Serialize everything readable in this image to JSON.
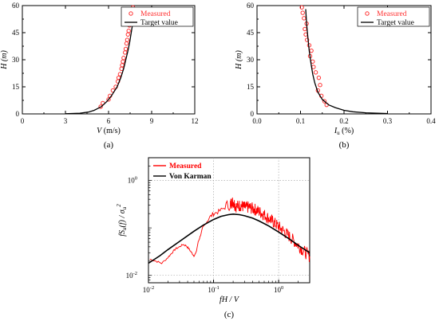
{
  "chart_data": [
    {
      "id": "a",
      "type": "scatter",
      "caption": "(a)",
      "xlabel": {
        "main": "V",
        "unit": " (m/s)"
      },
      "ylabel": "H (m)",
      "xlim": [
        0,
        12
      ],
      "ylim": [
        0,
        60
      ],
      "x_ticks": [
        "0",
        "3",
        "6",
        "9",
        "12"
      ],
      "y_ticks": [
        "0",
        "15",
        "30",
        "45",
        "60"
      ],
      "legend_position": "top-right",
      "series": [
        {
          "name": "Measured",
          "kind": "markers",
          "color": "#ff3030",
          "points": [
            [
              5.45,
              4
            ],
            [
              5.6,
              6
            ],
            [
              6.0,
              8
            ],
            [
              6.1,
              10
            ],
            [
              6.3,
              13
            ],
            [
              6.5,
              15
            ],
            [
              6.65,
              18
            ],
            [
              6.7,
              20
            ],
            [
              6.8,
              22
            ],
            [
              6.9,
              25
            ],
            [
              6.95,
              27
            ],
            [
              7.0,
              29
            ],
            [
              7.05,
              31
            ],
            [
              7.15,
              34
            ],
            [
              7.2,
              36
            ],
            [
              7.25,
              39
            ],
            [
              7.3,
              41
            ],
            [
              7.35,
              44
            ],
            [
              7.4,
              46
            ],
            [
              7.45,
              49
            ],
            [
              7.5,
              51
            ],
            [
              7.55,
              54
            ],
            [
              7.6,
              57
            ],
            [
              7.7,
              59
            ]
          ]
        },
        {
          "name": "Target value",
          "kind": "line",
          "color": "#000000",
          "points": [
            [
              3.0,
              0.1
            ],
            [
              4.0,
              0.4
            ],
            [
              4.6,
              1
            ],
            [
              5.0,
              2
            ],
            [
              5.5,
              4
            ],
            [
              5.9,
              7
            ],
            [
              6.2,
              10
            ],
            [
              6.6,
              15
            ],
            [
              6.85,
              20
            ],
            [
              7.05,
              25
            ],
            [
              7.2,
              30
            ],
            [
              7.35,
              35
            ],
            [
              7.48,
              40
            ],
            [
              7.58,
              45
            ],
            [
              7.68,
              50
            ],
            [
              7.78,
              55
            ],
            [
              7.85,
              59
            ]
          ]
        }
      ]
    },
    {
      "id": "b",
      "type": "scatter",
      "caption": "(b)",
      "xlabel": {
        "main": "I",
        "sub": "u",
        "unit": " (%)"
      },
      "ylabel": "H (m)",
      "xlim": [
        0,
        0.4
      ],
      "ylim": [
        0,
        60
      ],
      "x_ticks": [
        "0.0",
        "0.1",
        "0.2",
        "0.3",
        "0.4"
      ],
      "y_ticks": [
        "0",
        "15",
        "30",
        "45",
        "60"
      ],
      "legend_position": "top-right",
      "series": [
        {
          "name": "Measured",
          "kind": "markers",
          "color": "#ff3030",
          "points": [
            [
              0.16,
              5
            ],
            [
              0.155,
              7
            ],
            [
              0.148,
              10
            ],
            [
              0.14,
              13
            ],
            [
              0.145,
              16
            ],
            [
              0.142,
              20
            ],
            [
              0.135,
              23
            ],
            [
              0.13,
              26
            ],
            [
              0.128,
              29
            ],
            [
              0.122,
              32
            ],
            [
              0.125,
              35
            ],
            [
              0.12,
              38
            ],
            [
              0.115,
              41
            ],
            [
              0.112,
              44
            ],
            [
              0.11,
              47
            ],
            [
              0.114,
              50
            ],
            [
              0.108,
              53
            ],
            [
              0.105,
              56
            ],
            [
              0.103,
              59
            ]
          ]
        },
        {
          "name": "Target value",
          "kind": "line",
          "color": "#000000",
          "points": [
            [
              0.3,
              0.2
            ],
            [
              0.25,
              0.6
            ],
            [
              0.22,
              1.2
            ],
            [
              0.2,
              2
            ],
            [
              0.18,
              3.5
            ],
            [
              0.165,
              5
            ],
            [
              0.15,
              8
            ],
            [
              0.14,
              12
            ],
            [
              0.133,
              17
            ],
            [
              0.128,
              22
            ],
            [
              0.124,
              28
            ],
            [
              0.12,
              35
            ],
            [
              0.117,
              42
            ],
            [
              0.114,
              50
            ],
            [
              0.112,
              58
            ]
          ]
        }
      ]
    },
    {
      "id": "c",
      "type": "line",
      "caption": "(c)",
      "xscale": "log",
      "yscale": "log",
      "xlabel": "fH / V",
      "ylabel_main": "fS",
      "ylabel_sub": "u",
      "ylabel_tail": "(f) / σ",
      "ylabel_sub2": "u",
      "ylabel_sup": "2",
      "xlim": [
        0.01,
        3
      ],
      "ylim": [
        0.007,
        3
      ],
      "x_ticks": [
        {
          "base": "10",
          "exp": "-2"
        },
        {
          "base": "10",
          "exp": "-1"
        },
        {
          "base": "10",
          "exp": "0"
        }
      ],
      "y_ticks": [
        {
          "base": "10",
          "exp": "-2"
        },
        {
          "base": "10",
          "exp": "0"
        }
      ],
      "legend_position": "top-left",
      "series": [
        {
          "name": "Measured",
          "kind": "noisy-line",
          "color": "#ff0000",
          "points": [
            [
              0.0105,
              0.022
            ],
            [
              0.013,
              0.02
            ],
            [
              0.016,
              0.018
            ],
            [
              0.02,
              0.024
            ],
            [
              0.023,
              0.03
            ],
            [
              0.026,
              0.036
            ],
            [
              0.03,
              0.04
            ],
            [
              0.034,
              0.045
            ],
            [
              0.038,
              0.042
            ],
            [
              0.042,
              0.036
            ],
            [
              0.046,
              0.03
            ],
            [
              0.05,
              0.026
            ],
            [
              0.054,
              0.03
            ],
            [
              0.058,
              0.05
            ],
            [
              0.062,
              0.065
            ],
            [
              0.068,
              0.1
            ],
            [
              0.075,
              0.12
            ],
            [
              0.085,
              0.16
            ],
            [
              0.1,
              0.2
            ],
            [
              0.12,
              0.22
            ],
            [
              0.15,
              0.27
            ],
            [
              0.18,
              0.32
            ],
            [
              0.2,
              0.36
            ],
            [
              0.22,
              0.28
            ],
            [
              0.26,
              0.3
            ],
            [
              0.3,
              0.27
            ],
            [
              0.35,
              0.27
            ],
            [
              0.42,
              0.25
            ],
            [
              0.5,
              0.22
            ],
            [
              0.6,
              0.19
            ],
            [
              0.75,
              0.15
            ],
            [
              0.9,
              0.12
            ],
            [
              1.1,
              0.095
            ],
            [
              1.4,
              0.07
            ],
            [
              1.8,
              0.05
            ],
            [
              2.3,
              0.035
            ],
            [
              3.0,
              0.025
            ]
          ]
        },
        {
          "name": "Von Karman",
          "kind": "line",
          "color": "#000000",
          "points": [
            [
              0.01,
              0.018
            ],
            [
              0.015,
              0.026
            ],
            [
              0.02,
              0.035
            ],
            [
              0.03,
              0.052
            ],
            [
              0.05,
              0.085
            ],
            [
              0.07,
              0.115
            ],
            [
              0.1,
              0.15
            ],
            [
              0.13,
              0.175
            ],
            [
              0.17,
              0.19
            ],
            [
              0.2,
              0.195
            ],
            [
              0.25,
              0.19
            ],
            [
              0.3,
              0.18
            ],
            [
              0.4,
              0.16
            ],
            [
              0.5,
              0.14
            ],
            [
              0.7,
              0.11
            ],
            [
              1.0,
              0.082
            ],
            [
              1.5,
              0.057
            ],
            [
              2.0,
              0.043
            ],
            [
              3.0,
              0.03
            ]
          ]
        }
      ]
    }
  ]
}
